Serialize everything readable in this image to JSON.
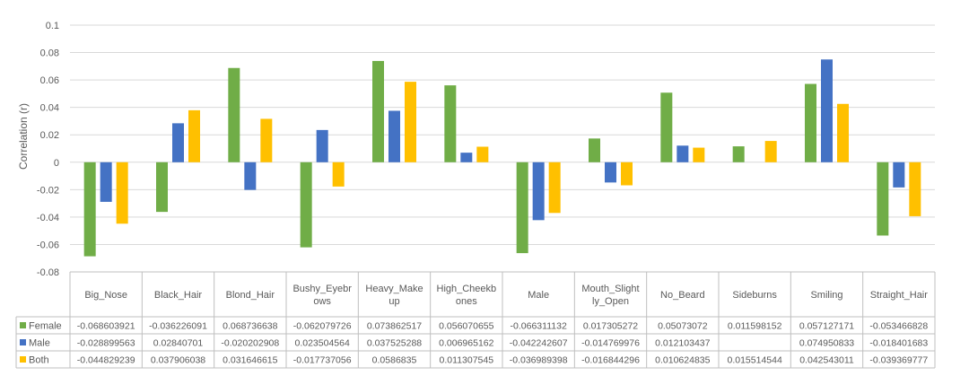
{
  "chart_data": {
    "type": "bar",
    "title": "",
    "xlabel": "",
    "ylabel": "Correlation (r)",
    "ylim": [
      -0.08,
      0.1
    ],
    "yticks": [
      0.1,
      0.08,
      0.06,
      0.04,
      0.02,
      0,
      -0.02,
      -0.04,
      -0.06,
      -0.08
    ],
    "ytick_labels": [
      "0.1",
      "0.08",
      "0.06",
      "0.04",
      "0.02",
      "0",
      "-0.02",
      "-0.04",
      "-0.06",
      "-0.08"
    ],
    "grid": true,
    "legend_position": "bottom-left data table",
    "categories": [
      [
        "Big_Nose"
      ],
      [
        "Black_Hair"
      ],
      [
        "Blond_Hair"
      ],
      [
        "Bushy_Eyebr",
        "ows"
      ],
      [
        "Heavy_Make",
        "up"
      ],
      [
        "High_Cheekb",
        "ones"
      ],
      [
        "Male"
      ],
      [
        "Mouth_Slight",
        "ly_Open"
      ],
      [
        "No_Beard"
      ],
      [
        "Sideburns"
      ],
      [
        "Smiling"
      ],
      [
        "Straight_Hair"
      ]
    ],
    "series": [
      {
        "name": "Female",
        "color": "#70ad47",
        "values": [
          -0.068603921,
          -0.036226091,
          0.068736638,
          -0.062079726,
          0.073862517,
          0.056070655,
          -0.066311132,
          0.017305272,
          0.05073072,
          0.011598152,
          0.057127171,
          -0.053466828
        ],
        "labels": [
          "-0.068603921",
          "-0.036226091",
          "0.068736638",
          "-0.062079726",
          "0.073862517",
          "0.056070655",
          "-0.066311132",
          "0.017305272",
          "0.05073072",
          "0.011598152",
          "0.057127171",
          "-0.053466828"
        ]
      },
      {
        "name": "Male",
        "color": "#4472c4",
        "values": [
          -0.028899563,
          0.02840701,
          -0.020202908,
          0.023504564,
          0.037525288,
          0.006965162,
          -0.042242607,
          -0.014769976,
          0.012103437,
          null,
          0.074950833,
          -0.018401683
        ],
        "labels": [
          "-0.028899563",
          "0.02840701",
          "-0.020202908",
          "0.023504564",
          "0.037525288",
          "0.006965162",
          "-0.042242607",
          "-0.014769976",
          "0.012103437",
          "",
          "0.074950833",
          "-0.018401683"
        ]
      },
      {
        "name": "Both",
        "color": "#ffc000",
        "values": [
          -0.044829239,
          0.037906038,
          0.031646615,
          -0.017737056,
          0.0586835,
          0.011307545,
          -0.036989398,
          -0.016844296,
          0.010624835,
          0.015514544,
          0.042543011,
          -0.039369777
        ],
        "labels": [
          "-0.044829239",
          "0.037906038",
          "0.031646615",
          "-0.017737056",
          "0.0586835",
          "0.011307545",
          "-0.036989398",
          "-0.016844296",
          "0.010624835",
          "0.015514544",
          "0.042543011",
          "-0.039369777"
        ]
      }
    ]
  }
}
